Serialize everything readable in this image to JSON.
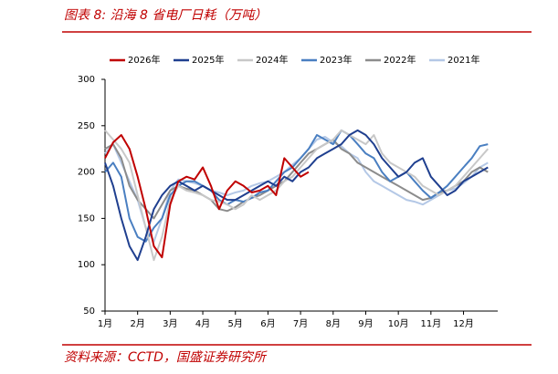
{
  "header": {
    "title": "图表 8:  沿海 8 省电厂日耗（万吨）"
  },
  "chart_data": {
    "type": "line",
    "categories": [
      "1月",
      null,
      null,
      null,
      "2月",
      null,
      null,
      null,
      "3月",
      null,
      null,
      null,
      "4月",
      null,
      null,
      null,
      "5月",
      null,
      null,
      null,
      "6月",
      null,
      null,
      null,
      "7月",
      null,
      null,
      null,
      "8月",
      null,
      null,
      null,
      "9月",
      null,
      null,
      null,
      "10月",
      null,
      null,
      null,
      "11月",
      null,
      null,
      null,
      "12月",
      null,
      null,
      null
    ],
    "ylim": [
      50,
      300
    ],
    "yticks": [
      50,
      100,
      150,
      200,
      250,
      300
    ],
    "grid": false,
    "legend": "top",
    "series": [
      {
        "name": "2026年",
        "color": "#c00000",
        "values": [
          215,
          232,
          240,
          225,
          195,
          160,
          120,
          108,
          165,
          190,
          195,
          192,
          205,
          185,
          160,
          180,
          190,
          185,
          178,
          180,
          185,
          175,
          215,
          205,
          195,
          200,
          null,
          null,
          null,
          null,
          null,
          null,
          null,
          null,
          null,
          null,
          null,
          null,
          null,
          null,
          null,
          null,
          null,
          null,
          null,
          null,
          null,
          null
        ]
      },
      {
        "name": "2025年",
        "color": "#1f3f8f",
        "values": [
          210,
          185,
          150,
          120,
          105,
          130,
          160,
          175,
          185,
          190,
          185,
          180,
          185,
          180,
          175,
          170,
          170,
          175,
          180,
          185,
          190,
          185,
          195,
          190,
          200,
          205,
          215,
          220,
          225,
          230,
          240,
          245,
          240,
          230,
          215,
          205,
          195,
          200,
          210,
          215,
          195,
          185,
          175,
          180,
          190,
          195,
          200,
          205
        ]
      },
      {
        "name": "2024年",
        "color": "#c8c8c8",
        "values": [
          245,
          235,
          225,
          210,
          175,
          140,
          105,
          130,
          170,
          185,
          180,
          178,
          175,
          170,
          168,
          165,
          160,
          165,
          175,
          170,
          175,
          180,
          190,
          195,
          205,
          215,
          225,
          230,
          235,
          245,
          240,
          235,
          230,
          240,
          220,
          210,
          205,
          200,
          195,
          185,
          180,
          175,
          180,
          185,
          195,
          205,
          215,
          225
        ]
      },
      {
        "name": "2023年",
        "color": "#4a7fc1",
        "values": [
          200,
          210,
          195,
          150,
          130,
          125,
          140,
          150,
          175,
          185,
          190,
          190,
          185,
          180,
          170,
          165,
          170,
          168,
          172,
          178,
          180,
          190,
          200,
          205,
          215,
          225,
          240,
          235,
          230,
          245,
          240,
          230,
          220,
          215,
          200,
          190,
          195,
          200,
          190,
          180,
          172,
          178,
          185,
          195,
          205,
          215,
          228,
          230
        ]
      },
      {
        "name": "2022年",
        "color": "#8c8c8c",
        "values": [
          225,
          230,
          215,
          185,
          170,
          160,
          150,
          165,
          180,
          185,
          182,
          180,
          175,
          170,
          160,
          158,
          162,
          168,
          172,
          175,
          180,
          185,
          190,
          200,
          210,
          220,
          225,
          230,
          235,
          225,
          220,
          210,
          205,
          200,
          195,
          190,
          185,
          180,
          175,
          170,
          172,
          178,
          180,
          185,
          190,
          200,
          205,
          200
        ]
      },
      {
        "name": "2021年",
        "color": "#b4c8e6",
        "values": [
          220,
          230,
          210,
          190,
          170,
          140,
          125,
          150,
          180,
          192,
          190,
          188,
          185,
          180,
          178,
          175,
          178,
          180,
          185,
          188,
          190,
          195,
          200,
          208,
          215,
          225,
          235,
          238,
          232,
          228,
          220,
          215,
          200,
          190,
          185,
          180,
          175,
          170,
          168,
          165,
          170,
          175,
          180,
          182,
          188,
          195,
          205,
          210
        ]
      }
    ]
  },
  "footer": {
    "source": "资料来源：CCTD，国盛证券研究所"
  }
}
